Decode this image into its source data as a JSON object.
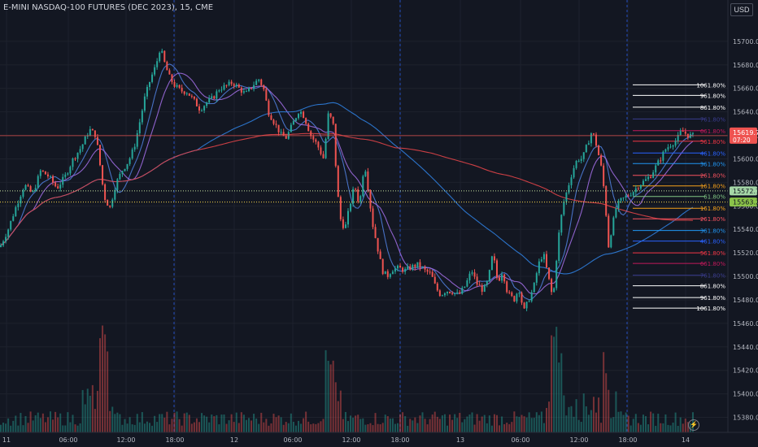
{
  "header": {
    "title": "E-MINI NASDAQ-100 FUTURES (DEC 2023), 15, CME",
    "currency": "USD"
  },
  "price_axis": {
    "ticks": [
      "15700.00",
      "15680.00",
      "15660.00",
      "15640.00",
      "15620.00",
      "15600.00",
      "15580.00",
      "15560.00",
      "15540.00",
      "15520.00",
      "15500.00",
      "15480.00",
      "15460.00",
      "15440.00",
      "15420.00",
      "15400.00",
      "15380.00"
    ],
    "current_price": "15619.75",
    "countdown": "07:20",
    "marker_1": "15572.75",
    "marker_2": "15563.25"
  },
  "time_axis": {
    "ticks": [
      "11",
      "06:00",
      "12:00",
      "18:00",
      "12",
      "06:00",
      "12:00",
      "18:00",
      "13",
      "06:00",
      "12:00",
      "18:00",
      "14"
    ]
  },
  "fib_levels": [
    {
      "label": "1061.80%",
      "price": 15663,
      "color": "#ffffff"
    },
    {
      "label": "961.80%",
      "price": 15654,
      "color": "#ffffff"
    },
    {
      "label": "861.80%",
      "price": 15644,
      "color": "#ffffff"
    },
    {
      "label": "761.80%",
      "price": 15634,
      "color": "#3a3c8f"
    },
    {
      "label": "661.80%",
      "price": 15624,
      "color": "#c2185b"
    },
    {
      "label": "561.80%",
      "price": 15615,
      "color": "#f23645"
    },
    {
      "label": "461.80%",
      "price": 15605,
      "color": "#2962ff"
    },
    {
      "label": "361.80%",
      "price": 15596,
      "color": "#2196f3"
    },
    {
      "label": "261.80%",
      "price": 15586,
      "color": "#f7525f"
    },
    {
      "label": "161.80%",
      "price": 15577,
      "color": "#f7a21b"
    },
    {
      "label": "61.80%",
      "price": 15568,
      "color": "#81c784"
    },
    {
      "label": "161.80%",
      "price": 15558,
      "color": "#f7a21b"
    },
    {
      "label": "261.80%",
      "price": 15549,
      "color": "#f7525f"
    },
    {
      "label": "361.80%",
      "price": 15539,
      "color": "#2196f3"
    },
    {
      "label": "461.80%",
      "price": 15530,
      "color": "#2962ff"
    },
    {
      "label": "561.80%",
      "price": 15520,
      "color": "#f23645"
    },
    {
      "label": "661.80%",
      "price": 15511,
      "color": "#c2185b"
    },
    {
      "label": "761.80%",
      "price": 15501,
      "color": "#3a3c8f"
    },
    {
      "label": "861.80%",
      "price": 15492,
      "color": "#ffffff"
    },
    {
      "label": "961.80%",
      "price": 15482,
      "color": "#ffffff"
    },
    {
      "label": "1061.80%",
      "price": 15473,
      "color": "#ffffff"
    }
  ],
  "colors": {
    "up": "#26a69a",
    "down": "#ef5350",
    "background": "#131722",
    "grid": "#1e222d"
  },
  "chart_data": {
    "type": "candlestick",
    "instrument": "E-MINI NASDAQ-100 FUTURES (DEC 2023)",
    "interval": "15",
    "y_range": [
      15370,
      15720
    ],
    "close_path": [
      [
        0,
        15525
      ],
      [
        10,
        15540
      ],
      [
        20,
        15560
      ],
      [
        30,
        15578
      ],
      [
        40,
        15570
      ],
      [
        50,
        15590
      ],
      [
        60,
        15585
      ],
      [
        70,
        15575
      ],
      [
        80,
        15585
      ],
      [
        90,
        15600
      ],
      [
        100,
        15610
      ],
      [
        110,
        15625
      ],
      [
        118,
        15620
      ],
      [
        122,
        15600
      ],
      [
        128,
        15568
      ],
      [
        135,
        15558
      ],
      [
        142,
        15578
      ],
      [
        150,
        15590
      ],
      [
        158,
        15598
      ],
      [
        165,
        15610
      ],
      [
        172,
        15632
      ],
      [
        178,
        15652
      ],
      [
        185,
        15668
      ],
      [
        192,
        15680
      ],
      [
        197,
        15695
      ],
      [
        203,
        15680
      ],
      [
        208,
        15670
      ],
      [
        214,
        15663
      ],
      [
        222,
        15658
      ],
      [
        230,
        15657
      ],
      [
        238,
        15650
      ],
      [
        246,
        15642
      ],
      [
        254,
        15648
      ],
      [
        262,
        15652
      ],
      [
        270,
        15660
      ],
      [
        278,
        15662
      ],
      [
        286,
        15665
      ],
      [
        294,
        15660
      ],
      [
        302,
        15655
      ],
      [
        310,
        15662
      ],
      [
        318,
        15668
      ],
      [
        324,
        15660
      ],
      [
        330,
        15640
      ],
      [
        338,
        15630
      ],
      [
        346,
        15620
      ],
      [
        352,
        15618
      ],
      [
        360,
        15630
      ],
      [
        368,
        15642
      ],
      [
        374,
        15636
      ],
      [
        382,
        15620
      ],
      [
        390,
        15612
      ],
      [
        398,
        15600
      ],
      [
        404,
        15640
      ],
      [
        410,
        15628
      ],
      [
        414,
        15580
      ],
      [
        418,
        15550
      ],
      [
        424,
        15540
      ],
      [
        430,
        15560
      ],
      [
        436,
        15578
      ],
      [
        442,
        15560
      ],
      [
        448,
        15598
      ],
      [
        452,
        15578
      ],
      [
        458,
        15545
      ],
      [
        464,
        15525
      ],
      [
        470,
        15505
      ],
      [
        476,
        15500
      ],
      [
        482,
        15506
      ],
      [
        490,
        15507
      ],
      [
        498,
        15505
      ],
      [
        506,
        15508
      ],
      [
        514,
        15510
      ],
      [
        522,
        15505
      ],
      [
        530,
        15502
      ],
      [
        536,
        15490
      ],
      [
        542,
        15484
      ],
      [
        548,
        15488
      ],
      [
        556,
        15487
      ],
      [
        564,
        15484
      ],
      [
        572,
        15492
      ],
      [
        580,
        15505
      ],
      [
        586,
        15494
      ],
      [
        594,
        15488
      ],
      [
        600,
        15496
      ],
      [
        606,
        15520
      ],
      [
        612,
        15495
      ],
      [
        618,
        15505
      ],
      [
        624,
        15486
      ],
      [
        632,
        15480
      ],
      [
        638,
        15490
      ],
      [
        644,
        15470
      ],
      [
        650,
        15480
      ],
      [
        656,
        15490
      ],
      [
        662,
        15510
      ],
      [
        668,
        15520
      ],
      [
        674,
        15500
      ],
      [
        680,
        15480
      ],
      [
        686,
        15530
      ],
      [
        692,
        15560
      ],
      [
        698,
        15575
      ],
      [
        704,
        15590
      ],
      [
        710,
        15600
      ],
      [
        716,
        15600
      ],
      [
        722,
        15612
      ],
      [
        728,
        15624
      ],
      [
        734,
        15610
      ],
      [
        740,
        15590
      ],
      [
        744,
        15565
      ],
      [
        748,
        15525
      ],
      [
        752,
        15540
      ],
      [
        758,
        15560
      ],
      [
        764,
        15565
      ],
      [
        770,
        15568
      ],
      [
        778,
        15572
      ],
      [
        786,
        15578
      ],
      [
        794,
        15582
      ],
      [
        800,
        15586
      ],
      [
        806,
        15593
      ],
      [
        812,
        15600
      ],
      [
        818,
        15608
      ],
      [
        824,
        15612
      ],
      [
        832,
        15616
      ],
      [
        838,
        15624
      ],
      [
        846,
        15620
      ],
      [
        852,
        15619.75
      ]
    ],
    "overlays": [
      "moving averages",
      "fibonacci extension levels"
    ]
  }
}
